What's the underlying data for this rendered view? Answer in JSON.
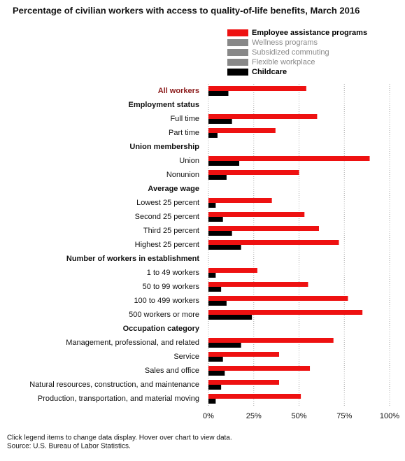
{
  "chart_data": {
    "type": "bar",
    "orientation": "horizontal",
    "title": "Percentage of civilian workers with access to quality-of-life benefits, March 2016",
    "categories": [
      "All workers",
      "Employment status",
      "Full time",
      "Part time",
      "Union membership",
      "Union",
      "Nonunion",
      "Average wage",
      "Lowest 25 percent",
      "Second 25 percent",
      "Third 25 percent",
      "Highest 25 percent",
      "Number of workers in establishment",
      "1 to 49 workers",
      "50 to 99 workers",
      "100 to 499 workers",
      "500 workers or more",
      "Occupation category",
      "Management, professional, and related",
      "Service",
      "Sales and office",
      "Natural resources, construction, and maintenance",
      "Production, transportation, and material moving"
    ],
    "series": [
      {
        "name": "Employee assistance programs",
        "color": "#ee1111",
        "visible": true,
        "values": [
          54,
          null,
          60,
          37,
          null,
          89,
          50,
          null,
          35,
          53,
          61,
          72,
          null,
          27,
          55,
          77,
          85,
          null,
          69,
          39,
          56,
          39,
          51
        ]
      },
      {
        "name": "Wellness programs",
        "color": "#888888",
        "visible": false
      },
      {
        "name": "Subsidized commuting",
        "color": "#888888",
        "visible": false
      },
      {
        "name": "Flexible workplace",
        "color": "#888888",
        "visible": false
      },
      {
        "name": "Childcare",
        "color": "#000000",
        "visible": true,
        "values": [
          11,
          null,
          13,
          5,
          null,
          17,
          10,
          null,
          4,
          8,
          13,
          18,
          null,
          4,
          7,
          10,
          24,
          null,
          18,
          8,
          9,
          7,
          4
        ]
      }
    ],
    "xlim": [
      0,
      100
    ],
    "xticks": [
      {
        "value": 0,
        "label": "0%"
      },
      {
        "value": 25,
        "label": "25%"
      },
      {
        "value": 50,
        "label": "50%"
      },
      {
        "value": 75,
        "label": "75%"
      },
      {
        "value": 100,
        "label": "100%"
      }
    ],
    "grid": true,
    "legend": "top",
    "notes": [
      "Click legend items to change data display. Hover over chart to view data.",
      "Source: U.S. Bureau of Labor Statistics."
    ]
  }
}
